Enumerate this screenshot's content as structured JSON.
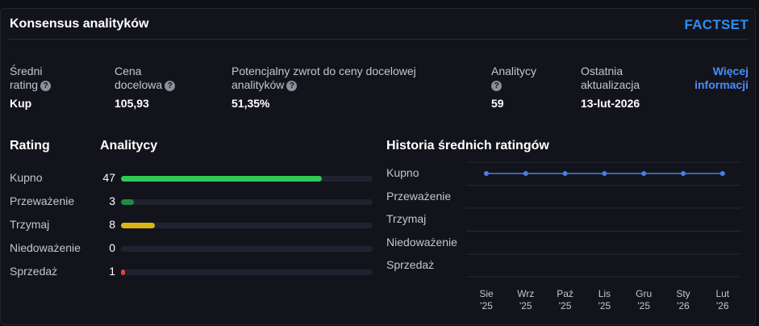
{
  "header": {
    "title": "Konsensus analityków",
    "logo": "FACTSET"
  },
  "summary": {
    "avg_rating": {
      "label_line1": "Średni",
      "label_line2": "rating",
      "value": "Kup"
    },
    "target_price": {
      "label_line1": "Cena",
      "label_line2": "docelowa",
      "value": "105,93"
    },
    "potential_return": {
      "label_line1": "Potencjalny zwrot do ceny docelowej",
      "label_line2": "analityków",
      "value": "51,35%"
    },
    "analysts": {
      "label_line1": "Analitycy",
      "value": "59"
    },
    "last_update": {
      "label_line1": "Ostatnia",
      "label_line2": "aktualizacja",
      "value": "13-lut-2026"
    },
    "more_link": {
      "line1": "Więcej",
      "line2": "informacji"
    }
  },
  "ratings_section": {
    "rating_header": "Rating",
    "analysts_header": "Analitycy",
    "max": 59,
    "rows": [
      {
        "label": "Kupno",
        "count": "47",
        "value": 47,
        "color": "#2ec956"
      },
      {
        "label": "Przeważenie",
        "count": "3",
        "value": 3,
        "color": "#1f8a44"
      },
      {
        "label": "Trzymaj",
        "count": "8",
        "value": 8,
        "color": "#d9b414"
      },
      {
        "label": "Niedoważenie",
        "count": "0",
        "value": 0,
        "color": "#1f8a44"
      },
      {
        "label": "Sprzedaż",
        "count": "1",
        "value": 1,
        "color": "#e0413d"
      }
    ]
  },
  "history": {
    "title": "Historia średnich ratingów",
    "y_labels": [
      "Kupno",
      "Przeważenie",
      "Trzymaj",
      "Niedoważenie",
      "Sprzedaż"
    ],
    "x_labels": [
      {
        "month": "Sie",
        "year": "'25"
      },
      {
        "month": "Wrz",
        "year": "'25"
      },
      {
        "month": "Paź",
        "year": "'25"
      },
      {
        "month": "Lis",
        "year": "'25"
      },
      {
        "month": "Gru",
        "year": "'25"
      },
      {
        "month": "Sty",
        "year": "'26"
      },
      {
        "month": "Lut",
        "year": "'26"
      }
    ],
    "line_color": "#4a7fe8"
  },
  "chart_data": {
    "type": "line",
    "title": "Historia średnich ratingów",
    "categories": [
      "Sie '25",
      "Wrz '25",
      "Paź '25",
      "Lis '25",
      "Gru '25",
      "Sty '26",
      "Lut '26"
    ],
    "y_categories": [
      "Kupno",
      "Przeważenie",
      "Trzymaj",
      "Niedoważenie",
      "Sprzedaż"
    ],
    "series": [
      {
        "values": [
          "Kupno",
          "Kupno",
          "Kupno",
          "Kupno",
          "Kupno",
          "Kupno",
          "Kupno"
        ]
      }
    ],
    "grid": true,
    "legend": "none"
  }
}
